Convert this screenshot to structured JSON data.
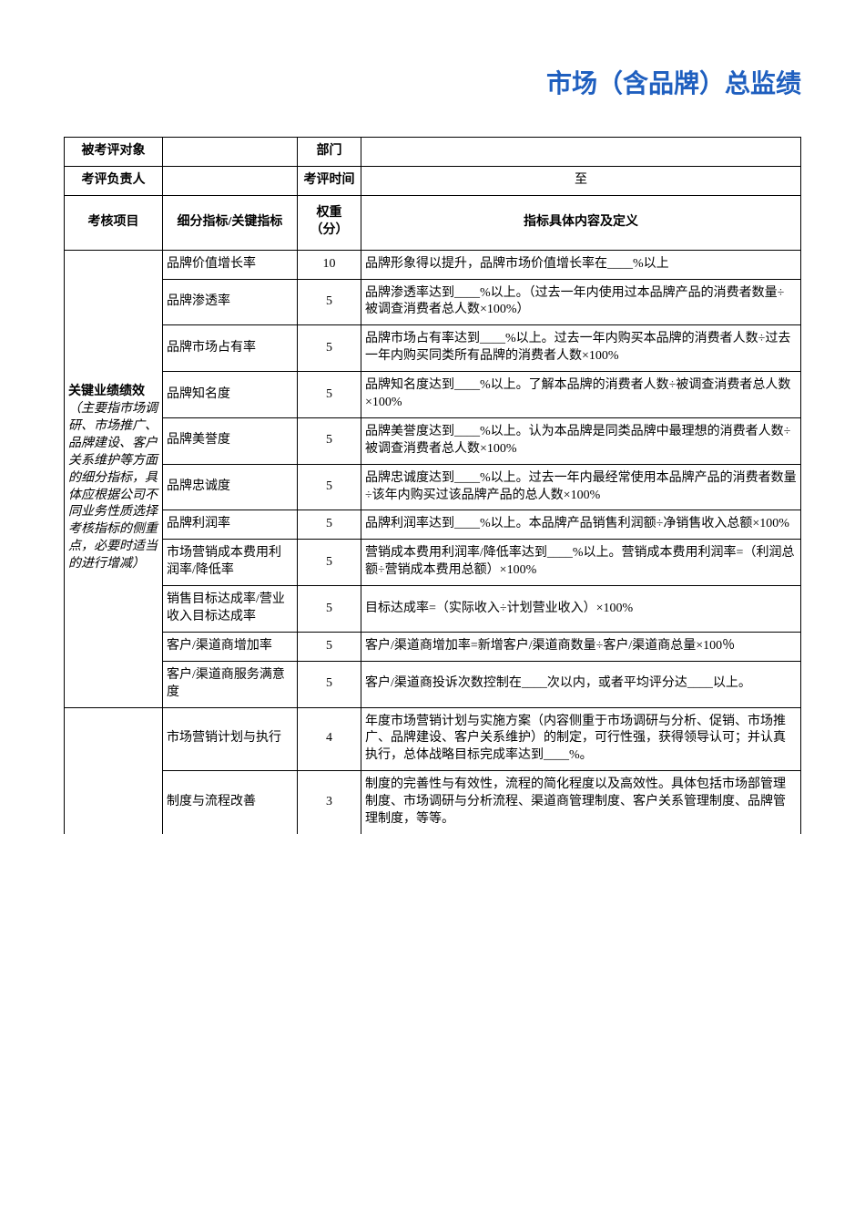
{
  "title": "市场（含品牌）总监绩",
  "header_rows": [
    {
      "label1": "被考评对象",
      "val1": "",
      "label2": "部门",
      "val2": ""
    },
    {
      "label1": "考评负责人",
      "val1": "",
      "label2": "考评时间",
      "val2": "至"
    }
  ],
  "column_headers": {
    "c1": "考核项目",
    "c2": "细分指标/关键指标",
    "c3": "权重（分）",
    "c4": "指标具体内容及定义"
  },
  "section1": {
    "label_bold": "关键业绩绩效",
    "label_note": "（主要指市场调研、市场推广、品牌建设、客户关系维护等方面的细分指标，具体应根据公司不同业务性质选择考核指标的侧重点，必要时适当的进行增减）"
  },
  "rows": [
    {
      "indicator": "品牌价值增长率",
      "weight": "10",
      "definition": "品牌形象得以提升，品牌市场价值增长率在____%以上"
    },
    {
      "indicator": "品牌渗透率",
      "weight": "5",
      "definition": "品牌渗透率达到____%以上。（过去一年内使用过本品牌产品的消费者数量÷被调查消费者总人数×100%）"
    },
    {
      "indicator": "品牌市场占有率",
      "weight": "5",
      "definition": "品牌市场占有率达到____%以上。过去一年内购买本品牌的消费者人数÷过去一年内购买同类所有品牌的消费者人数×100%"
    },
    {
      "indicator": "品牌知名度",
      "weight": "5",
      "definition": "品牌知名度达到____%以上。了解本品牌的消费者人数÷被调查消费者总人数×100%"
    },
    {
      "indicator": "品牌美誉度",
      "weight": "5",
      "definition": "品牌美誉度达到____%以上。认为本品牌是同类品牌中最理想的消费者人数÷被调查消费者总人数×100%"
    },
    {
      "indicator": "品牌忠诚度",
      "weight": "5",
      "definition": "品牌忠诚度达到____%以上。过去一年内最经常使用本品牌产品的消费者数量÷该年内购买过该品牌产品的总人数×100%"
    },
    {
      "indicator": "品牌利润率",
      "weight": "5",
      "definition": "品牌利润率达到____%以上。本品牌产品销售利润额÷净销售收入总额×100%"
    },
    {
      "indicator": "市场营销成本费用利润率/降低率",
      "weight": "5",
      "definition": "营销成本费用利润率/降低率达到____%以上。营销成本费用利润率=（利润总额÷营销成本费用总额）×100%"
    },
    {
      "indicator": "销售目标达成率/营业收入目标达成率",
      "weight": "5",
      "definition": "目标达成率=（实际收入÷计划营业收入）×100%"
    },
    {
      "indicator": "客户/渠道商增加率",
      "weight": "5",
      "definition": "客户/渠道商增加率=新增客户/渠道商数量÷客户/渠道商总量×100％"
    },
    {
      "indicator": "客户/渠道商服务满意度",
      "weight": "5",
      "definition": "客户/渠道商投诉次数控制在____次以内，或者平均评分达____以上。"
    }
  ],
  "rows2": [
    {
      "indicator": "市场营销计划与执行",
      "weight": "4",
      "definition": "年度市场营销计划与实施方案（内容侧重于市场调研与分析、促销、市场推广、品牌建设、客户关系维护）的制定，可行性强，获得领导认可；并认真执行，总体战略目标完成率达到____%。"
    },
    {
      "indicator": "制度与流程改善",
      "weight": "3",
      "definition": "制度的完善性与有效性，流程的简化程度以及高效性。具体包括市场部管理制度、市场调研与分析流程、渠道商管理制度、客户关系管理制度、品牌管理制度，等等。"
    }
  ],
  "colors": {
    "title_color": "#1f5fbf",
    "border_color": "#000000",
    "background": "#ffffff"
  }
}
